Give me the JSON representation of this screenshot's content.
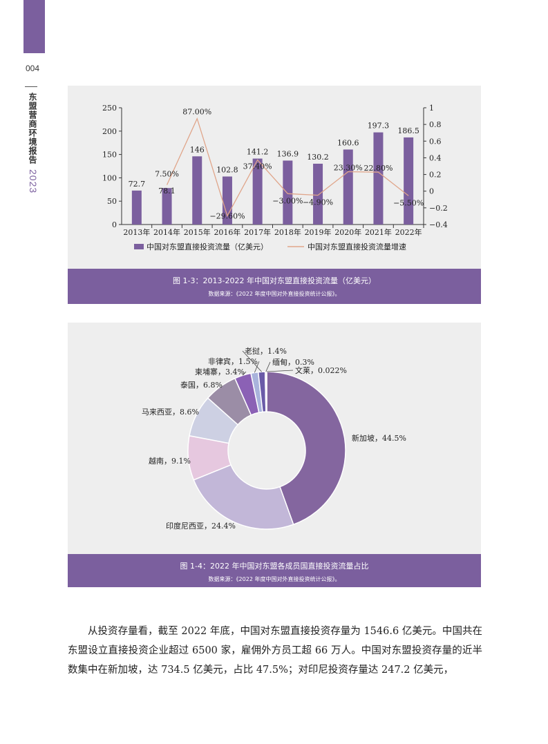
{
  "page": {
    "number": "004",
    "side_title": "东盟营商环境报告",
    "side_year": "2023"
  },
  "figure_1_3": {
    "caption": "图 1-3：2013-2022 年中国对东盟直接投资流量（亿美元）",
    "source": "数据来源：《2022 年度中国对外直接投资统计公报》。",
    "legend_bar": "中国对东盟直接投资流量（亿美元）",
    "legend_line": "中国对东盟直接投资流量增速"
  },
  "figure_1_4": {
    "caption": "图 1-4：2022 年中国对东盟各成员国直接投资流量占比",
    "source": "数据来源：《2022 年度中国对外直接投资统计公报》。"
  },
  "chart_data": [
    {
      "type": "bar",
      "categories": [
        "2013年",
        "2014年",
        "2015年",
        "2016年",
        "2017年",
        "2018年",
        "2019年",
        "2020年",
        "2021年",
        "2022年"
      ],
      "series": [
        {
          "name": "中国对东盟直接投资流量（亿美元）",
          "kind": "bar",
          "axis": "left",
          "values": [
            72.7,
            78.1,
            146,
            102.8,
            141.2,
            136.9,
            130.2,
            160.6,
            197.3,
            186.5
          ],
          "labels": [
            "72.7",
            "78.1",
            "146",
            "102.8",
            "141.2",
            "136.9",
            "130.2",
            "160.6",
            "197.3",
            "186.5"
          ],
          "color": "#7b5f9e"
        },
        {
          "name": "中国对东盟直接投资流量增速",
          "kind": "line",
          "axis": "right",
          "values": [
            null,
            0.075,
            0.87,
            -0.296,
            0.374,
            -0.03,
            -0.049,
            0.233,
            0.228,
            -0.055
          ],
          "labels": [
            "",
            "7.50%",
            "87.00%",
            "−29.60%",
            "37.40%",
            "−3.00%",
            "−4.90%",
            "23.30%",
            "22.80%",
            "−5.50%"
          ],
          "color": "#e0a58a"
        }
      ],
      "y_left": {
        "min": 0,
        "max": 250,
        "ticks": [
          "0",
          "50",
          "100",
          "150",
          "200",
          "250"
        ]
      },
      "y_right": {
        "min": -0.4,
        "max": 1,
        "ticks": [
          "−0.4",
          "−0.2",
          "0",
          "0.2",
          "0.4",
          "0.6",
          "0.8",
          "1"
        ]
      },
      "legend_position": "bottom"
    },
    {
      "type": "pie",
      "donut": true,
      "slices": [
        {
          "name": "新加坡",
          "value": 44.5,
          "label": "新加坡，44.5%",
          "color": "#84669f"
        },
        {
          "name": "印度尼西亚",
          "value": 24.4,
          "label": "印度尼西亚，24.4%",
          "color": "#c2b7d8"
        },
        {
          "name": "越南",
          "value": 9.1,
          "label": "越南，9.1%",
          "color": "#e6c8df"
        },
        {
          "name": "马来西亚",
          "value": 8.6,
          "label": "马来西亚，8.6%",
          "color": "#cdd0e3"
        },
        {
          "name": "泰国",
          "value": 6.8,
          "label": "泰国，6.8%",
          "color": "#9b8da6"
        },
        {
          "name": "柬埔寨",
          "value": 3.4,
          "label": "柬埔寨，3.4%",
          "color": "#8b61b5"
        },
        {
          "name": "非律宾",
          "value": 1.5,
          "label": "非律宾，1.5%",
          "color": "#a9b3dc"
        },
        {
          "name": "老挝",
          "value": 1.4,
          "label": "老挝，1.4%",
          "color": "#6a5ba8"
        },
        {
          "name": "缅甸",
          "value": 0.3,
          "label": "缅甸，0.3%",
          "color": "#d8d0e5"
        },
        {
          "name": "文莱",
          "value": 0.022,
          "label": "文莱，0.022%",
          "color": "#5a4a86"
        }
      ]
    }
  ],
  "body": {
    "paragraph": "从投资存量看，截至 2022 年底，中国对东盟直接投资存量为 1546.6 亿美元。中国共在东盟设立直接投资企业超过 6500 家，雇佣外方员工超 66 万人。中国对东盟投资存量的近半数集中在新加坡，达 734.5 亿美元，占比 47.5%；对印尼投资存量达 247.2 亿美元，"
  }
}
